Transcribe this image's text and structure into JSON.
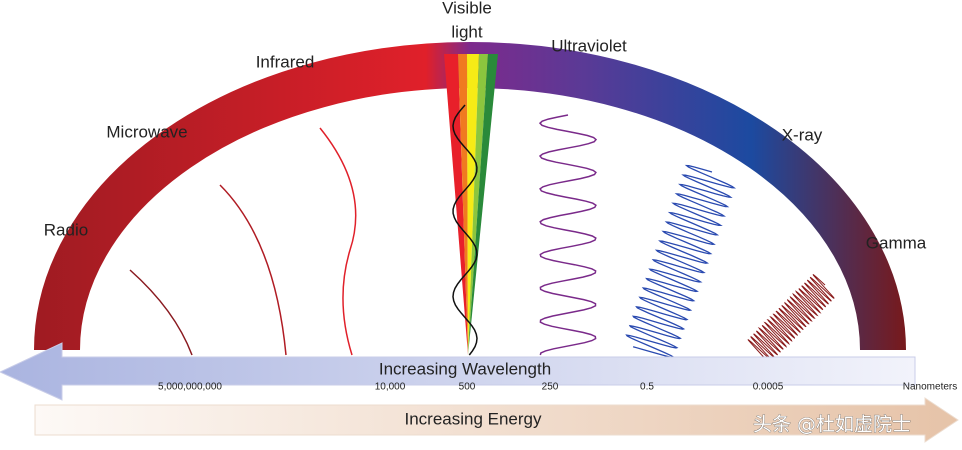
{
  "bands": [
    {
      "label": "Radio"
    },
    {
      "label": "Microwave"
    },
    {
      "label": "Infrared"
    },
    {
      "label_lines": [
        "Visible",
        "light"
      ]
    },
    {
      "label": "Ultraviolet"
    },
    {
      "label": "X-ray"
    },
    {
      "label": "Gamma"
    }
  ],
  "wavelength_arrow": {
    "label": "Increasing Wavelength"
  },
  "scale": {
    "ticks": [
      "5,000,000,000",
      "10,000",
      "500",
      "250",
      "0.5",
      "0.0005"
    ],
    "unit": "Nanometers"
  },
  "energy_arrow": {
    "label": "Increasing Energy"
  },
  "watermark": "头条 @杜如虚院士"
}
